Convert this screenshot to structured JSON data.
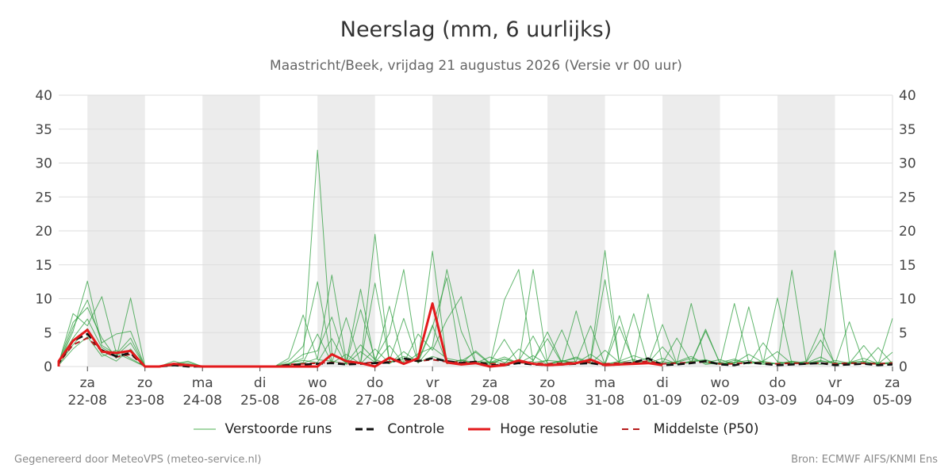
{
  "chart_data": {
    "type": "line",
    "title": "Neerslag (mm, 6 uurlijks)",
    "subtitle": "Maastricht/Beek, vrijdag 21 augustus 2026 (Versie vr 00 uur)",
    "xlabel": "",
    "ylabel": "",
    "ylim": [
      0,
      40
    ],
    "yticks": [
      0,
      5,
      10,
      15,
      20,
      25,
      30,
      35,
      40
    ],
    "xlim": [
      -0.5,
      14
    ],
    "grid": true,
    "legend_position": "bottom",
    "day_ticks": [
      {
        "day": "za",
        "date": "22-08"
      },
      {
        "day": "zo",
        "date": "23-08"
      },
      {
        "day": "ma",
        "date": "24-08"
      },
      {
        "day": "di",
        "date": "25-08"
      },
      {
        "day": "wo",
        "date": "26-08"
      },
      {
        "day": "do",
        "date": "27-08"
      },
      {
        "day": "vr",
        "date": "28-08"
      },
      {
        "day": "za",
        "date": "29-08"
      },
      {
        "day": "zo",
        "date": "30-08"
      },
      {
        "day": "ma",
        "date": "31-08"
      },
      {
        "day": "di",
        "date": "01-09"
      },
      {
        "day": "wo",
        "date": "02-09"
      },
      {
        "day": "do",
        "date": "03-09"
      },
      {
        "day": "vr",
        "date": "04-09"
      },
      {
        "day": "za",
        "date": "05-09"
      }
    ],
    "shaded_days": [
      0,
      2,
      4,
      6,
      8,
      10,
      12
    ],
    "series": [
      {
        "name": "Controle",
        "x": [
          -0.75,
          -0.5,
          -0.25,
          0,
          0.25,
          0.5,
          0.75,
          1,
          1.25,
          1.5,
          1.75,
          2,
          2.25,
          2.5,
          2.75,
          3,
          3.25,
          3.5,
          3.75,
          4,
          4.25,
          4.5,
          4.75,
          5,
          5.25,
          5.5,
          5.75,
          6,
          6.25,
          6.5,
          6.75,
          7,
          7.25,
          7.5,
          7.75,
          8,
          8.25,
          8.5,
          8.75,
          9,
          9.25,
          9.5,
          9.75,
          10,
          10.25,
          10.5,
          10.75,
          11,
          11.25,
          11.5,
          11.75,
          12,
          12.25,
          12.5,
          12.75,
          13,
          13.25,
          13.5,
          13.75,
          14
        ],
        "values": [
          0,
          0.5,
          3.8,
          4.8,
          2.4,
          1.5,
          2.0,
          0,
          0,
          0.2,
          0,
          0,
          0,
          0,
          0,
          0,
          0,
          0.2,
          0.3,
          0.4,
          0.5,
          0.3,
          0.4,
          0.5,
          0.6,
          1.2,
          0.8,
          1.2,
          0.8,
          0.5,
          0.7,
          0.2,
          0.2,
          0.5,
          0.3,
          0.2,
          0.3,
          0.4,
          0.5,
          0.2,
          0.3,
          0.6,
          1.2,
          0.2,
          0.3,
          0.5,
          0.8,
          0.3,
          0.2,
          0.6,
          0.4,
          0.2,
          0.3,
          0.4,
          0.5,
          0.2,
          0.3,
          0.4,
          0.2,
          0.3
        ]
      },
      {
        "name": "Hoge resolutie",
        "x": [
          -0.75,
          -0.5,
          -0.25,
          0,
          0.25,
          0.5,
          0.75,
          1,
          1.25,
          1.5,
          1.75,
          2,
          2.25,
          2.5,
          2.75,
          3,
          3.25,
          3.5,
          3.75,
          4,
          4.25,
          4.5,
          4.75,
          5,
          5.25,
          5.5,
          5.75,
          6,
          6.25,
          6.5,
          6.75,
          7,
          7.25,
          7.5,
          7.75,
          8,
          8.25,
          8.5,
          8.75,
          9,
          9.25,
          9.5,
          9.75,
          10
        ],
        "values": [
          0,
          0.8,
          3.8,
          5.4,
          2.2,
          2.0,
          2.3,
          0,
          0,
          0.4,
          0.2,
          0,
          0,
          0,
          0,
          0,
          0,
          0,
          0,
          0,
          1.8,
          0.8,
          0.5,
          0,
          1.3,
          0.4,
          1.2,
          9.3,
          0.6,
          0.3,
          0.5,
          0,
          0.2,
          0.9,
          0.4,
          0.2,
          0.3,
          0.5,
          1.0,
          0.2,
          0.3,
          0.4,
          0.5,
          0.2
        ]
      },
      {
        "name": "Middelste (P50)",
        "x": [
          -0.75,
          -0.5,
          -0.25,
          0,
          0.25,
          0.5,
          0.75,
          1,
          1.25,
          1.5,
          1.75,
          2,
          2.25,
          2.5,
          2.75,
          3,
          3.25,
          3.5,
          3.75,
          4,
          4.25,
          4.5,
          4.75,
          5,
          5.25,
          5.5,
          5.75,
          6,
          6.25,
          6.5,
          6.75,
          7,
          7.25,
          7.5,
          7.75,
          8,
          8.25,
          8.5,
          8.75,
          9,
          9.25,
          9.5,
          9.75,
          10,
          10.25,
          10.5,
          10.75,
          11,
          11.25,
          11.5,
          11.75,
          12,
          12.25,
          12.5,
          12.75,
          13,
          13.25,
          13.5,
          13.75,
          14
        ],
        "values": [
          0,
          0.5,
          3.2,
          4.2,
          2.3,
          1.4,
          1.8,
          0,
          0,
          0.2,
          0.1,
          0,
          0,
          0,
          0,
          0,
          0,
          0.3,
          0.4,
          0.5,
          0.6,
          0.4,
          0.5,
          0.6,
          0.7,
          0.9,
          0.8,
          1.0,
          0.7,
          0.6,
          0.6,
          0.4,
          0.4,
          0.6,
          0.5,
          0.4,
          0.5,
          0.6,
          0.6,
          0.4,
          0.5,
          0.6,
          0.8,
          0.4,
          0.5,
          0.6,
          0.7,
          0.4,
          0.4,
          0.6,
          0.5,
          0.4,
          0.5,
          0.5,
          0.5,
          0.4,
          0.5,
          0.5,
          0.4,
          0.5
        ]
      },
      {
        "name": "Verstoorde runs",
        "group": "ensemble",
        "x_start": -0.75,
        "x_step": 0.25,
        "values": [
          0,
          0.3,
          5.2,
          12.6,
          3.1,
          1.8,
          4.2,
          0,
          0,
          0.2,
          0.4,
          0,
          0,
          0,
          0,
          0,
          0,
          0.4,
          1.2,
          31.9,
          2.0,
          0.5,
          3.2,
          1.0,
          0.4,
          2.2,
          0.6,
          1.5,
          0.8,
          0.4,
          2.3,
          0.5,
          1.1,
          0.6,
          0.3,
          0.9,
          0.7,
          1.4,
          0.5,
          0.3,
          0.8,
          1.6,
          0.9,
          0.4,
          0.6,
          1.2,
          0.5,
          0.3,
          0.9,
          0.5,
          0.8,
          0.4,
          0.6,
          0.3,
          0.7,
          17.1,
          0.6,
          0.8,
          0.3,
          0.5
        ]
      },
      {
        "name": "Verstoorde runs",
        "group": "ensemble",
        "x_start": -0.75,
        "x_step": 0.25,
        "values": [
          0,
          0.5,
          7.8,
          6.0,
          10.3,
          2.0,
          1.0,
          0,
          0,
          0.8,
          0.2,
          0,
          0,
          0,
          0,
          0,
          0,
          0.2,
          0.5,
          1.2,
          13.5,
          0.8,
          0.5,
          19.5,
          0.6,
          1.5,
          0.8,
          17.0,
          0.5,
          0.9,
          0.4,
          0.6,
          1.4,
          0.5,
          14.3,
          0.4,
          0.8,
          0.5,
          1.2,
          17.1,
          0.4,
          0.7,
          0.5,
          6.2,
          0.4,
          0.8,
          1.0,
          0.4,
          0.6,
          0.9,
          0.3,
          0.5,
          0.7,
          0.4,
          0.8,
          0.6,
          0.4,
          0.5,
          0.3,
          7.1
        ]
      },
      {
        "name": "Verstoorde runs",
        "group": "ensemble",
        "x_start": -0.75,
        "x_step": 0.25,
        "values": [
          0,
          0.6,
          6.5,
          8.7,
          4.2,
          1.2,
          10.1,
          0,
          0,
          0.4,
          0.8,
          0,
          0,
          0,
          0,
          0,
          0,
          1.2,
          7.6,
          1.0,
          0.8,
          0.4,
          8.4,
          1.1,
          4.9,
          14.3,
          0.5,
          3.0,
          14.3,
          5.2,
          0.6,
          0.3,
          9.8,
          14.3,
          0.6,
          0.9,
          5.4,
          0.4,
          0.8,
          12.8,
          0.5,
          7.8,
          0.4,
          0.7,
          0.5,
          9.3,
          0.6,
          1.0,
          0.4,
          8.8,
          0.5,
          0.4,
          14.2,
          0.6,
          0.3,
          0.9,
          0.5,
          0.4,
          0.6,
          0.3
        ]
      },
      {
        "name": "Verstoorde runs",
        "group": "ensemble",
        "x_start": -0.75,
        "x_step": 0.25,
        "values": [
          0,
          0.4,
          5.8,
          9.8,
          3.5,
          4.8,
          5.2,
          0,
          0,
          0.3,
          0.6,
          0,
          0,
          0,
          0,
          0,
          0,
          0.8,
          3.0,
          12.5,
          0.6,
          7.2,
          0.4,
          12.3,
          0.8,
          7.1,
          0.6,
          5.8,
          13.1,
          0.4,
          0.8,
          0.6,
          4.0,
          0.5,
          0.8,
          5.1,
          0.6,
          8.2,
          0.4,
          0.5,
          7.5,
          0.4,
          10.7,
          0.5,
          4.2,
          0.6,
          5.5,
          0.4,
          9.3,
          0.6,
          0.5,
          10.1,
          0.4,
          0.8,
          5.6,
          0.3,
          6.6,
          0.5,
          2.8,
          0.4
        ]
      },
      {
        "name": "Verstoorde runs",
        "group": "ensemble",
        "x_start": -0.75,
        "x_step": 0.25,
        "values": [
          0,
          0.8,
          4.2,
          7.0,
          2.8,
          1.6,
          3.5,
          0,
          0,
          0.5,
          0.3,
          0,
          0,
          0,
          0,
          0,
          0,
          0.3,
          1.8,
          2.3,
          7.3,
          0.6,
          11.4,
          0.5,
          8.9,
          0.5,
          4.8,
          2.4,
          6.9,
          10.3,
          0.5,
          0.7,
          0.4,
          2.6,
          0.9,
          4.1,
          0.5,
          0.8,
          6.0,
          0.3,
          5.9,
          0.7,
          0.5,
          2.9,
          0.4,
          0.6,
          5.2,
          0.5,
          0.6,
          0.4,
          3.5,
          0.7,
          0.4,
          0.6,
          3.9,
          0.4,
          0.5,
          3.1,
          0.4,
          2.1
        ]
      },
      {
        "name": "Verstoorde runs",
        "group": "ensemble",
        "x_start": -0.75,
        "x_step": 0.25,
        "values": [
          0,
          0.3,
          3.2,
          5.6,
          1.9,
          0.8,
          2.6,
          0,
          0,
          0.2,
          0.1,
          0,
          0,
          0,
          0,
          0,
          0,
          0.5,
          0.9,
          0.6,
          4.1,
          0.3,
          2.2,
          0.6,
          3.1,
          0.4,
          1.9,
          2.8,
          1.2,
          0.8,
          2.1,
          0.4,
          1.1,
          0.5,
          1.6,
          0.3,
          0.8,
          1.2,
          0.4,
          2.4,
          0.6,
          0.5,
          1.3,
          0.4,
          0.7,
          1.5,
          0.3,
          0.6,
          1.1,
          0.4,
          0.8,
          2.2,
          0.4,
          0.5,
          1.4,
          0.3,
          0.6,
          1.2,
          0.4,
          0.7
        ]
      },
      {
        "name": "Verstoorde runs",
        "group": "ensemble",
        "x_start": -0.75,
        "x_step": 0.25,
        "values": [
          0,
          0.2,
          2.6,
          4.4,
          1.5,
          2.4,
          1.2,
          0,
          0,
          0.1,
          0.3,
          0,
          0,
          0,
          0,
          0,
          0,
          0.2,
          0.6,
          4.8,
          0.5,
          1.8,
          0.4,
          2.6,
          0.5,
          1.2,
          0.8,
          6.1,
          0.4,
          1.0,
          0.5,
          1.4,
          0.6,
          0.8,
          4.5,
          0.4,
          0.9,
          0.5,
          1.8,
          0.4,
          0.6,
          1.0,
          0.5,
          1.2,
          0.4,
          0.7,
          0.9,
          0.4,
          0.5,
          1.8,
          0.6,
          0.4,
          0.8,
          0.5,
          0.9,
          0.4,
          0.6,
          0.7,
          0.4,
          0.5
        ]
      }
    ]
  },
  "legend": [
    {
      "label": "Verstoorde runs",
      "color": "#4caf50",
      "style": "thin-solid"
    },
    {
      "label": "Controle",
      "color": "#111111",
      "style": "dashed"
    },
    {
      "label": "Hoge resolutie",
      "color": "#e31a1c",
      "style": "solid"
    },
    {
      "label": "Middelste (P50)",
      "color": "#b71c1c",
      "style": "dashed"
    }
  ],
  "footer": {
    "left": "Gegenereerd door MeteoVPS (meteo-service.nl)",
    "right": "Bron: ECMWF AIFS/KNMI Ens"
  },
  "colors": {
    "ensemble": "#2e9e3e",
    "control": "#111111",
    "highres": "#e31a1c",
    "median": "#b71c1c",
    "shade": "#ececec",
    "grid": "#dddddd"
  }
}
